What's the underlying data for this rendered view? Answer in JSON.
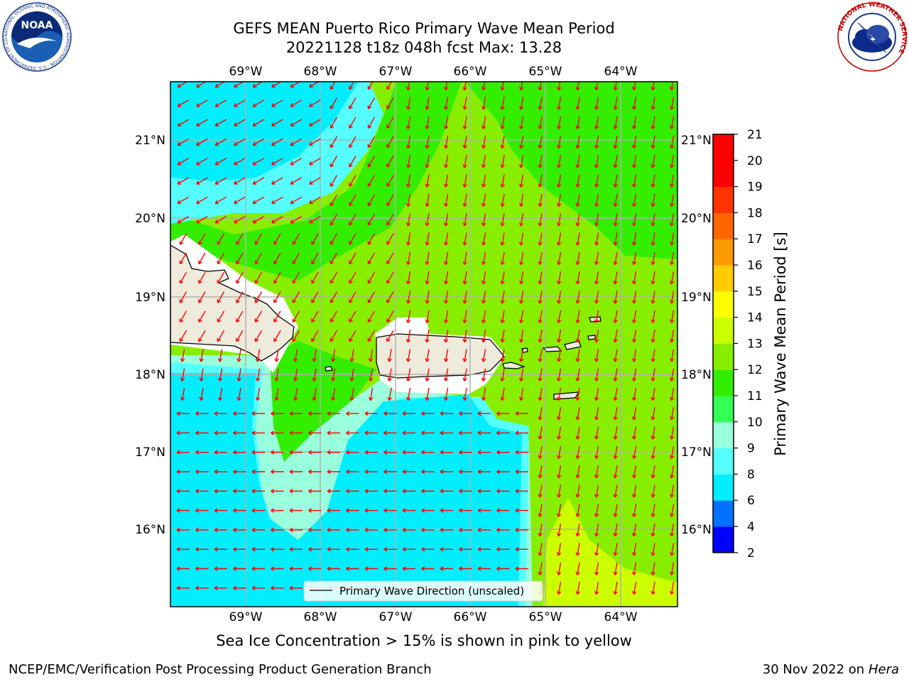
{
  "title": {
    "line1": "GEFS MEAN Puerto Rico Primary Wave Mean Period",
    "line2": "20221128 t18z 048h fcst   Max: 13.28"
  },
  "map": {
    "lon_labels": [
      "69°W",
      "68°W",
      "67°W",
      "66°W",
      "65°W",
      "64°W"
    ],
    "lat_labels": [
      "21°N",
      "20°N",
      "19°N",
      "18°N",
      "17°N",
      "16°N"
    ],
    "legend_label": "Primary Wave Direction (unscaled)",
    "arrow_color": "#ff0000",
    "coast_color": "#000000",
    "land_color": "#eeebdd"
  },
  "colorbar": {
    "label": "Primary Wave Mean Period [s]",
    "tick_labels": [
      "2",
      "4",
      "6",
      "8",
      "9",
      "10",
      "11",
      "12",
      "13",
      "14",
      "15",
      "16",
      "17",
      "18",
      "19",
      "20",
      "21"
    ],
    "colors": [
      "#0000ff",
      "#0070ff",
      "#00eeff",
      "#55ffff",
      "#99ffdd",
      "#33ff55",
      "#33ee00",
      "#88ee00",
      "#ccff00",
      "#ffff00",
      "#ffcc00",
      "#ff9900",
      "#ff6600",
      "#ff3300",
      "#ff0000",
      "#ff0000"
    ]
  },
  "logos": {
    "noaa_text": "NOAA",
    "noaa_ring": "NATIONAL OCEANIC AND ATMOSPHERIC ADMINISTRATION · U.S. DEPARTMENT OF COMMERCE",
    "nws_ring": "NATIONAL WEATHER SERVICE"
  },
  "footer": {
    "ice_note": "Sea Ice Concentration > 15% is shown in pink to yellow",
    "credit": "NCEP/EMC/Verification Post Processing Product Generation Branch",
    "date": "30 Nov 2022 on",
    "host": "Hera"
  }
}
